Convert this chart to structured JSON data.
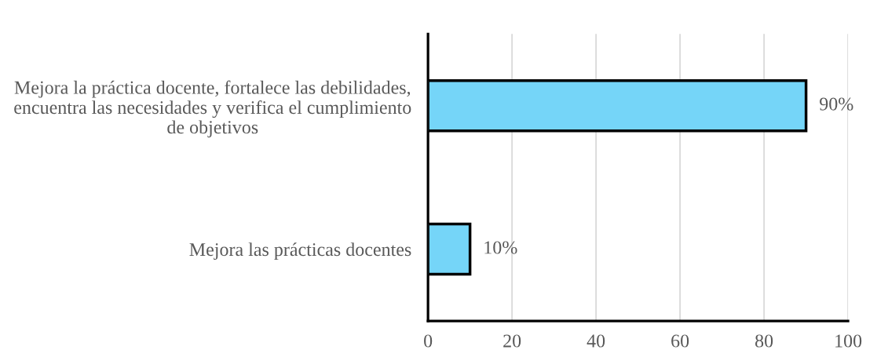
{
  "chart_data": {
    "type": "bar",
    "orientation": "horizontal",
    "categories": [
      "Mejora la práctica docente, fortalece las debilidades,\nencuentra las necesidades y verifica el cumplimiento\nde objetivos",
      "Mejora las prácticas docentes"
    ],
    "values": [
      90,
      10
    ],
    "value_labels": [
      "90%",
      "10%"
    ],
    "color": "#75d5f8",
    "xlim": [
      0,
      100
    ],
    "xticks": [
      0,
      20,
      40,
      60,
      80,
      100
    ],
    "grid": "x"
  }
}
